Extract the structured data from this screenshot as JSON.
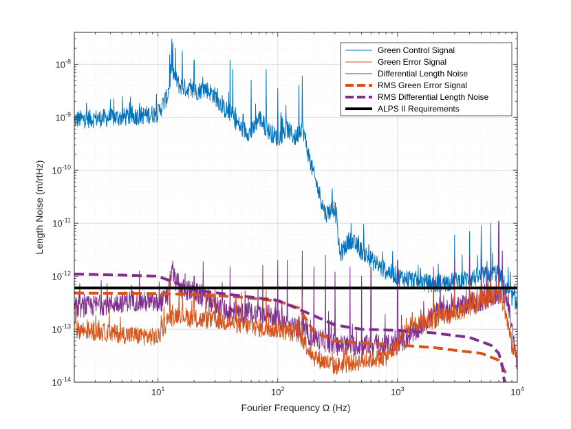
{
  "chart_data": {
    "type": "line",
    "xscale": "log",
    "yscale": "log",
    "xlim": [
      2,
      10000
    ],
    "ylim": [
      1e-14,
      4e-08
    ],
    "xlabel": "Fourier Frequency Ω (Hz)",
    "ylabel": "Length Noise (m/rtHz)",
    "grid": "major and minor",
    "legend_position": "top-right",
    "x_ticks": [
      {
        "base": "10",
        "exp": "1",
        "value": 10
      },
      {
        "base": "10",
        "exp": "2",
        "value": 100
      },
      {
        "base": "10",
        "exp": "3",
        "value": 1000
      },
      {
        "base": "10",
        "exp": "4",
        "value": 10000
      }
    ],
    "y_ticks": [
      {
        "base": "10",
        "exp": "-8",
        "value": 1e-08
      },
      {
        "base": "10",
        "exp": "-9",
        "value": 1e-09
      },
      {
        "base": "10",
        "exp": "-10",
        "value": 1e-10
      },
      {
        "base": "10",
        "exp": "-11",
        "value": 1e-11
      },
      {
        "base": "10",
        "exp": "-12",
        "value": 1e-12
      },
      {
        "base": "10",
        "exp": "-13",
        "value": 1e-13
      },
      {
        "base": "10",
        "exp": "-14",
        "value": 1e-14
      }
    ],
    "series": [
      {
        "name": "Green Control Signal",
        "color": "#0072BD",
        "style": "solid",
        "noise": 0.35,
        "points": [
          [
            2,
            9e-10
          ],
          [
            5,
            1e-09
          ],
          [
            8,
            1.1e-09
          ],
          [
            10,
            1.2e-09
          ],
          [
            12,
            2.5e-09
          ],
          [
            13,
            8e-09
          ],
          [
            15,
            4e-09
          ],
          [
            20,
            3e-09
          ],
          [
            25,
            3.5e-09
          ],
          [
            30,
            2.5e-09
          ],
          [
            35,
            1.5e-09
          ],
          [
            40,
            1.2e-09
          ],
          [
            50,
            6e-10
          ],
          [
            60,
            5e-10
          ],
          [
            70,
            1e-09
          ],
          [
            80,
            6e-10
          ],
          [
            100,
            4e-10
          ],
          [
            120,
            6e-10
          ],
          [
            140,
            4e-10
          ],
          [
            160,
            7e-10
          ],
          [
            180,
            2e-10
          ],
          [
            200,
            8e-11
          ],
          [
            250,
            1.5e-11
          ],
          [
            300,
            2e-11
          ],
          [
            330,
            2.5e-12
          ],
          [
            400,
            5e-12
          ],
          [
            500,
            3e-12
          ],
          [
            700,
            1.5e-12
          ],
          [
            1000,
            1e-12
          ],
          [
            1500,
            8e-13
          ],
          [
            2000,
            7e-13
          ],
          [
            3000,
            8e-13
          ],
          [
            5000,
            1e-12
          ],
          [
            7000,
            1.2e-12
          ],
          [
            8000,
            6e-13
          ],
          [
            10000,
            3e-13
          ]
        ],
        "spikes": [
          [
            13,
            3e-08
          ],
          [
            14,
            2e-08
          ],
          [
            16,
            1.8e-08
          ],
          [
            12.5,
            1.5e-08
          ],
          [
            20,
            1.2e-08
          ],
          [
            40,
            1.2e-08
          ],
          [
            42,
            8e-09
          ],
          [
            80,
            8e-09
          ],
          [
            60,
            5e-09
          ],
          [
            100,
            3.5e-09
          ],
          [
            160,
            6e-09
          ],
          [
            150,
            4e-09
          ],
          [
            310,
            2e-11
          ],
          [
            3000,
            6e-12
          ],
          [
            4000,
            7e-12
          ],
          [
            5000,
            9e-12
          ],
          [
            6000,
            1e-11
          ],
          [
            7000,
            1.1e-11
          ]
        ]
      },
      {
        "name": "Green Error Signal",
        "color": "#D95319",
        "style": "solid",
        "noise": 0.35,
        "points": [
          [
            2,
            1e-13
          ],
          [
            5,
            8e-14
          ],
          [
            10,
            7e-14
          ],
          [
            11,
            1e-13
          ],
          [
            12,
            1.5e-13
          ],
          [
            15,
            2e-13
          ],
          [
            20,
            1.5e-13
          ],
          [
            30,
            1.5e-13
          ],
          [
            50,
            1.2e-13
          ],
          [
            80,
            1e-13
          ],
          [
            100,
            1e-13
          ],
          [
            150,
            8e-14
          ],
          [
            200,
            3e-14
          ],
          [
            300,
            2e-14
          ],
          [
            500,
            2.5e-14
          ],
          [
            800,
            3e-14
          ],
          [
            1000,
            5e-14
          ],
          [
            1200,
            1e-13
          ],
          [
            2000,
            1.5e-13
          ],
          [
            4000,
            2.5e-13
          ],
          [
            6000,
            4e-13
          ],
          [
            7000,
            5e-13
          ],
          [
            8000,
            2e-13
          ],
          [
            9000,
            5e-14
          ],
          [
            10000,
            3e-14
          ]
        ],
        "spikes": [
          [
            12.5,
            1e-12
          ],
          [
            20,
            5e-13
          ],
          [
            30,
            6e-13
          ],
          [
            50,
            5e-13
          ],
          [
            80,
            6e-13
          ],
          [
            160,
            4e-13
          ],
          [
            2000,
            6e-13
          ],
          [
            3000,
            7e-13
          ],
          [
            4000,
            8e-13
          ],
          [
            5000,
            7e-13
          ],
          [
            6000,
            8e-13
          ],
          [
            7000,
            9e-13
          ]
        ]
      },
      {
        "name": "Differential Length Noise",
        "color": "#7E2F8E",
        "style": "solid",
        "noise": 0.4,
        "points": [
          [
            2,
            2.5e-13
          ],
          [
            4,
            3e-13
          ],
          [
            6,
            3.5e-13
          ],
          [
            10,
            3e-13
          ],
          [
            12,
            4e-13
          ],
          [
            13,
            1.2e-12
          ],
          [
            15,
            6e-13
          ],
          [
            20,
            5e-13
          ],
          [
            30,
            3e-13
          ],
          [
            40,
            2e-13
          ],
          [
            60,
            2e-13
          ],
          [
            80,
            2e-13
          ],
          [
            100,
            1.5e-13
          ],
          [
            200,
            7e-14
          ],
          [
            300,
            5e-14
          ],
          [
            500,
            5e-14
          ],
          [
            1000,
            5e-14
          ],
          [
            1500,
            1e-13
          ],
          [
            2000,
            2e-13
          ],
          [
            4000,
            3e-13
          ],
          [
            6000,
            4e-13
          ],
          [
            8000,
            5e-13
          ],
          [
            9000,
            1e-13
          ],
          [
            10000,
            2e-14
          ]
        ],
        "spikes": [
          [
            13,
            1.5e-12
          ],
          [
            20,
            1e-12
          ],
          [
            40,
            1.5e-12
          ],
          [
            75,
            1.6e-12
          ],
          [
            100,
            2e-12
          ],
          [
            120,
            2e-12
          ],
          [
            160,
            3e-12
          ],
          [
            200,
            1.5e-12
          ],
          [
            250,
            2.5e-12
          ],
          [
            300,
            1.2e-12
          ],
          [
            400,
            1.5e-12
          ],
          [
            500,
            1e-12
          ],
          [
            600,
            1.5e-12
          ],
          [
            1000,
            2e-12
          ],
          [
            2000,
            1.5e-12
          ],
          [
            3000,
            2e-12
          ],
          [
            4000,
            2.5e-12
          ],
          [
            5000,
            3e-12
          ],
          [
            6000,
            3e-12
          ],
          [
            7000,
            1e-11
          ],
          [
            7500,
            3e-12
          ]
        ]
      },
      {
        "name": "RMS Green Error Signal",
        "color": "#D95319",
        "style": "dashed",
        "width": 4,
        "noise": 0,
        "points": [
          [
            2,
            4.8e-13
          ],
          [
            10,
            4.7e-13
          ],
          [
            20,
            4.5e-13
          ],
          [
            30,
            4.3e-13
          ],
          [
            50,
            4e-13
          ],
          [
            100,
            3.4e-13
          ],
          [
            150,
            2.5e-13
          ],
          [
            200,
            9e-14
          ],
          [
            300,
            6e-14
          ],
          [
            500,
            5.5e-14
          ],
          [
            1000,
            5e-14
          ],
          [
            2000,
            4.5e-14
          ],
          [
            3000,
            4e-14
          ],
          [
            5000,
            3.5e-14
          ],
          [
            7000,
            2.6e-14
          ],
          [
            8000,
            1.5e-14
          ]
        ]
      },
      {
        "name": "RMS Differential Length Noise",
        "color": "#7E2F8E",
        "style": "dashed",
        "width": 4,
        "noise": 0,
        "points": [
          [
            2,
            1.1e-12
          ],
          [
            5,
            1.05e-12
          ],
          [
            10,
            1e-12
          ],
          [
            13,
            8e-13
          ],
          [
            20,
            5.5e-13
          ],
          [
            40,
            4.5e-13
          ],
          [
            100,
            3.5e-13
          ],
          [
            200,
            1.8e-13
          ],
          [
            300,
            1.2e-13
          ],
          [
            500,
            1e-13
          ],
          [
            1000,
            9.5e-14
          ],
          [
            2000,
            8.5e-14
          ],
          [
            4000,
            7e-14
          ],
          [
            6000,
            5e-14
          ],
          [
            7000,
            3.5e-14
          ],
          [
            7500,
            2e-14
          ],
          [
            7800,
            1e-14
          ]
        ]
      },
      {
        "name": "ALPS II Requirements",
        "color": "#000000",
        "style": "solid",
        "width": 4,
        "noise": 0,
        "points": [
          [
            2,
            6e-13
          ],
          [
            10000,
            6e-13
          ]
        ]
      }
    ]
  }
}
